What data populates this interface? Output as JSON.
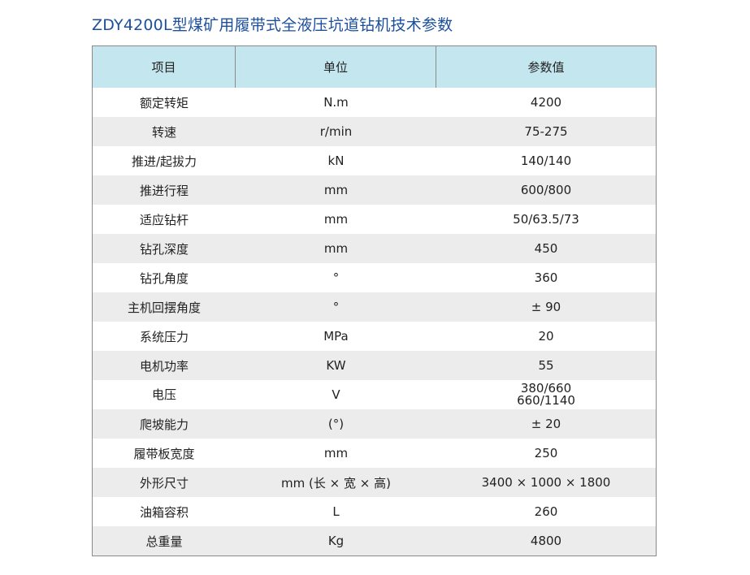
{
  "title": "ZDY4200L型煤矿用履带式全液压坑道钻机技术参数",
  "table": {
    "headers": [
      "项目",
      "单位",
      "参数值"
    ],
    "rows": [
      [
        "额定转矩",
        "N.m",
        "4200"
      ],
      [
        "转速",
        "r/min",
        "75-275"
      ],
      [
        "推进/起拔力",
        "kN",
        "140/140"
      ],
      [
        "推进行程",
        "mm",
        "600/800"
      ],
      [
        "适应钻杆",
        "mm",
        "50/63.5/73"
      ],
      [
        "钻孔深度",
        "mm",
        "450"
      ],
      [
        "钻孔角度",
        "°",
        "360"
      ],
      [
        "主机回摆角度",
        "°",
        "± 90"
      ],
      [
        "系统压力",
        "MPa",
        "20"
      ],
      [
        "电机功率",
        "KW",
        "55"
      ],
      [
        "电压",
        "V",
        "380/660\n660/1140"
      ],
      [
        "爬坡能力",
        "(°)",
        "± 20"
      ],
      [
        "履带板宽度",
        "mm",
        "250"
      ],
      [
        "外形尺寸",
        "mm (长 × 宽 × 高)",
        "3400 × 1000 × 1800"
      ],
      [
        "油箱容积",
        "L",
        "260"
      ],
      [
        "总重量",
        "Kg",
        "4800"
      ]
    ]
  },
  "colors": {
    "title": "#1c4f9c",
    "header_bg": "#c4e6ef",
    "shaded_row": "#ececec"
  }
}
